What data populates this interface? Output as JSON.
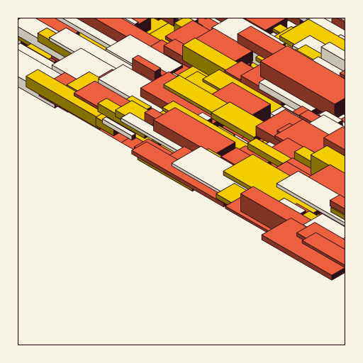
{
  "artwork": {
    "style": "isometric-blocks",
    "palette": {
      "background": "#f7f3e3",
      "cream": "#f7f3e3",
      "yellow": "#f2cd00",
      "red": "#ec6040",
      "ink": "#2a1218"
    }
  }
}
